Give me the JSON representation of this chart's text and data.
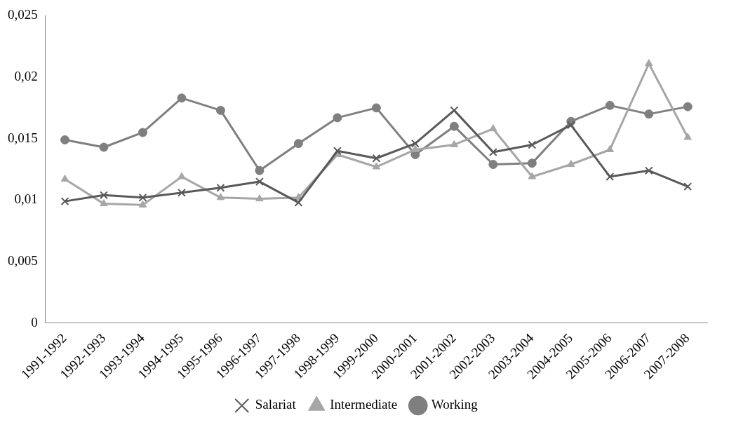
{
  "chart_data": {
    "type": "line",
    "categories": [
      "1991-1992",
      "1992-1993",
      "1993-1994",
      "1994-1995",
      "1995-1996",
      "1996-1997",
      "1997-1998",
      "1998-1999",
      "1999-2000",
      "2000-2001",
      "2001-2002",
      "2002-2003",
      "2003-2004",
      "2004-2005",
      "2005-2006",
      "2006-2007",
      "2007-2008"
    ],
    "series": [
      {
        "name": "Salariat",
        "color": "#595959",
        "marker": "cross",
        "values": [
          0.0099,
          0.0104,
          0.0102,
          0.0106,
          0.011,
          0.0115,
          0.0098,
          0.014,
          0.0134,
          0.0146,
          0.0173,
          0.0139,
          0.0145,
          0.0161,
          0.0119,
          0.0124,
          0.0111
        ]
      },
      {
        "name": "Intermediate",
        "color": "#a6a6a6",
        "marker": "triangle",
        "values": [
          0.0117,
          0.0097,
          0.0096,
          0.0119,
          0.0102,
          0.0101,
          0.0102,
          0.0137,
          0.0127,
          0.0141,
          0.0145,
          0.0158,
          0.0119,
          0.0129,
          0.0141,
          0.0211,
          0.0151
        ]
      },
      {
        "name": "Working",
        "color": "#7f7f7f",
        "marker": "circle",
        "values": [
          0.0149,
          0.0143,
          0.0155,
          0.0183,
          0.0173,
          0.0124,
          0.0146,
          0.0167,
          0.0175,
          0.0137,
          0.016,
          0.0129,
          0.013,
          0.0164,
          0.0177,
          0.017,
          0.0176
        ]
      }
    ],
    "ylim": [
      0,
      0.025
    ],
    "yticks": [
      {
        "value": 0,
        "label": "0"
      },
      {
        "value": 0.005,
        "label": "0,005"
      },
      {
        "value": 0.01,
        "label": "0,01"
      },
      {
        "value": 0.015,
        "label": "0,015"
      },
      {
        "value": 0.02,
        "label": "0,02"
      },
      {
        "value": 0.025,
        "label": "0,025"
      }
    ],
    "grid": false,
    "legend": "bottom",
    "line_style": "solid"
  }
}
